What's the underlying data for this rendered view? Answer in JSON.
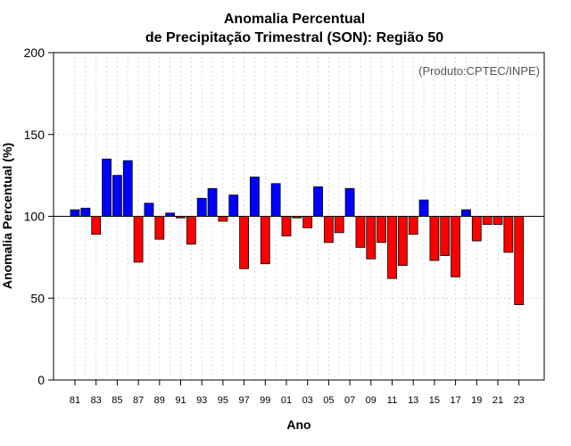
{
  "chart_data": {
    "type": "bar",
    "title_line1": "Anomalia Percentual",
    "title_line2": "de Precipitação Trimestral (SON): Região 50",
    "xlabel": "Ano",
    "ylabel": "Anomalia Percentual (%)",
    "credit": "(Produto:CPTEC/INPE)",
    "baseline": 100,
    "ylim": [
      0,
      200
    ],
    "yticks": [
      0,
      50,
      100,
      150,
      200
    ],
    "tick_labels": [
      "81",
      "83",
      "85",
      "87",
      "89",
      "91",
      "93",
      "95",
      "97",
      "99",
      "01",
      "03",
      "05",
      "07",
      "09",
      "11",
      "13",
      "15",
      "17",
      "19",
      "21",
      "23"
    ],
    "categories": [
      "81",
      "82",
      "83",
      "84",
      "85",
      "86",
      "87",
      "88",
      "89",
      "90",
      "91",
      "92",
      "93",
      "94",
      "95",
      "96",
      "97",
      "98",
      "99",
      "00",
      "01",
      "02",
      "03",
      "04",
      "05",
      "06",
      "07",
      "08",
      "09",
      "10",
      "11",
      "12",
      "13",
      "14",
      "15",
      "16",
      "17",
      "18",
      "19",
      "20",
      "21",
      "22",
      "23"
    ],
    "values": [
      104,
      105,
      89,
      135,
      125,
      134,
      72,
      108,
      86,
      102,
      99,
      83,
      111,
      117,
      97,
      113,
      68,
      124,
      71,
      120,
      88,
      99,
      93,
      118,
      84,
      90,
      117,
      81,
      74,
      84,
      62,
      70,
      89,
      110,
      73,
      76,
      63,
      104,
      85,
      95,
      95,
      78,
      46
    ],
    "colors": {
      "above": "#0000ff",
      "below": "#ff0000",
      "outline": "#000000",
      "grid": "#d9d9d9"
    }
  }
}
